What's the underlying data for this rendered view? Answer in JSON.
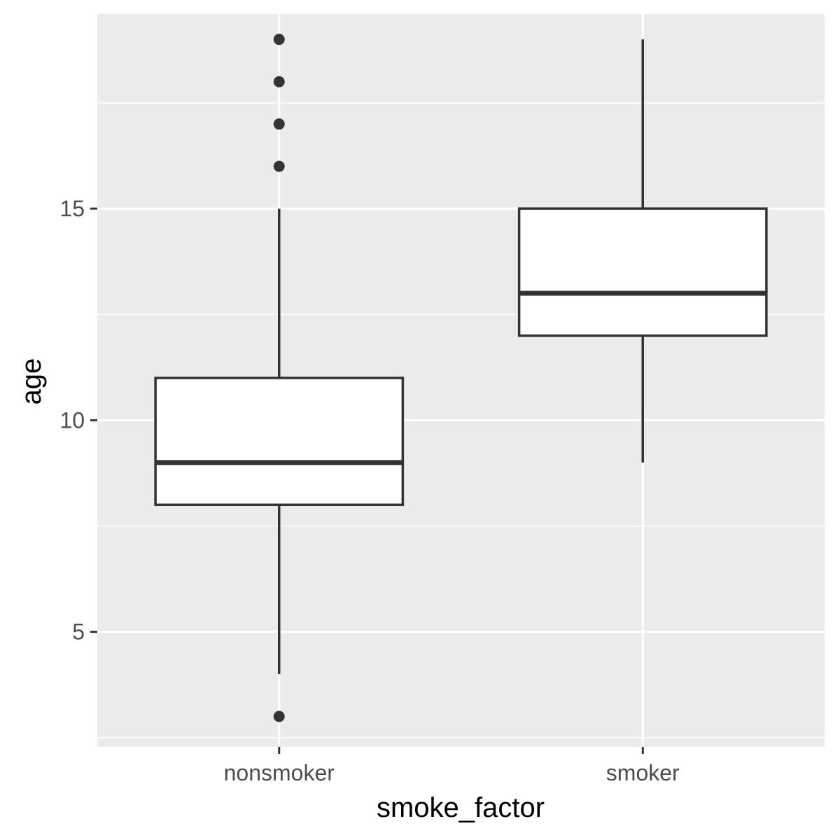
{
  "chart_data": {
    "type": "boxplot",
    "xlabel": "smoke_factor",
    "ylabel": "age",
    "categories": [
      "nonsmoker",
      "smoker"
    ],
    "ylim": [
      2.28,
      19.6
    ],
    "yticks": [
      5,
      10,
      15
    ],
    "y_minor_ticks": [
      2.5,
      7.5,
      12.5,
      17.5
    ],
    "grid": true,
    "panel_background": "#EBEBEB",
    "grid_color": "#FFFFFF",
    "box_fill": "#FFFFFF",
    "box_line": "#333333",
    "boxes": [
      {
        "category": "nonsmoker",
        "whisker_low": 4,
        "q1": 8,
        "median": 9,
        "q3": 11,
        "whisker_high": 15,
        "outliers": [
          3,
          16,
          17,
          18,
          19
        ]
      },
      {
        "category": "smoker",
        "whisker_low": 9,
        "q1": 12,
        "median": 13,
        "q3": 15,
        "whisker_high": 19,
        "outliers": []
      }
    ]
  }
}
